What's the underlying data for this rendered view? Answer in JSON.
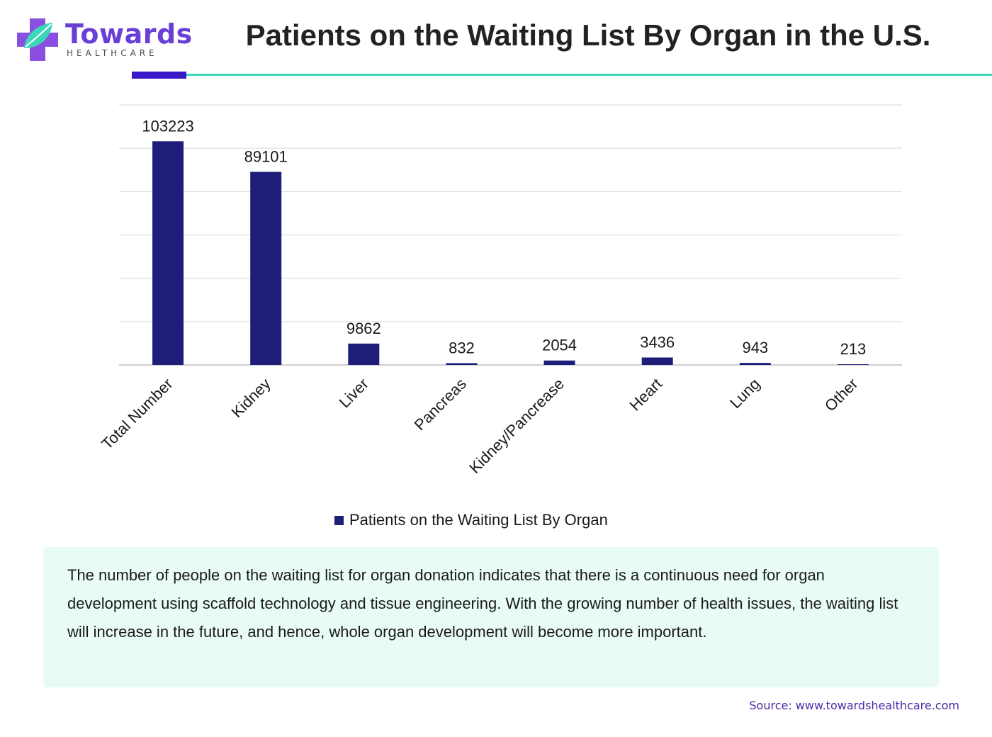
{
  "brand": {
    "name": "Towards",
    "subtitle": "HEALTHCARE",
    "colors": {
      "purple": "#6a3fd6",
      "teal": "#3ad7b8"
    },
    "icon": "cross-leaf-icon"
  },
  "header": {
    "title": "Patients on the Waiting List By Organ in the U.S."
  },
  "chart_data": {
    "type": "bar",
    "title": "Patients on the Waiting List By Organ in the U.S.",
    "categories": [
      "Total Number",
      "Kidney",
      "Liver",
      "Pancreas",
      "Kidney/Pancrease",
      "Heart",
      "Lung",
      "Other"
    ],
    "series": [
      {
        "name": "Patients on the Waiting List By Organ",
        "values": [
          103223,
          89101,
          9862,
          832,
          2054,
          3436,
          943,
          213
        ],
        "color": "#1f1d7a"
      }
    ],
    "ylim": [
      0,
      120000
    ],
    "grid": true,
    "legend": "bottom"
  },
  "legend": {
    "label": "Patients on the Waiting List By Organ"
  },
  "note": {
    "text": "The number of people on the waiting list for organ donation indicates that there is a continuous need for organ development using scaffold technology and tissue engineering. With the growing number of health issues, the waiting list will increase in the future, and hence, whole organ development will become more important."
  },
  "footer": {
    "source": "Source: www.towardshealthcare.com"
  }
}
